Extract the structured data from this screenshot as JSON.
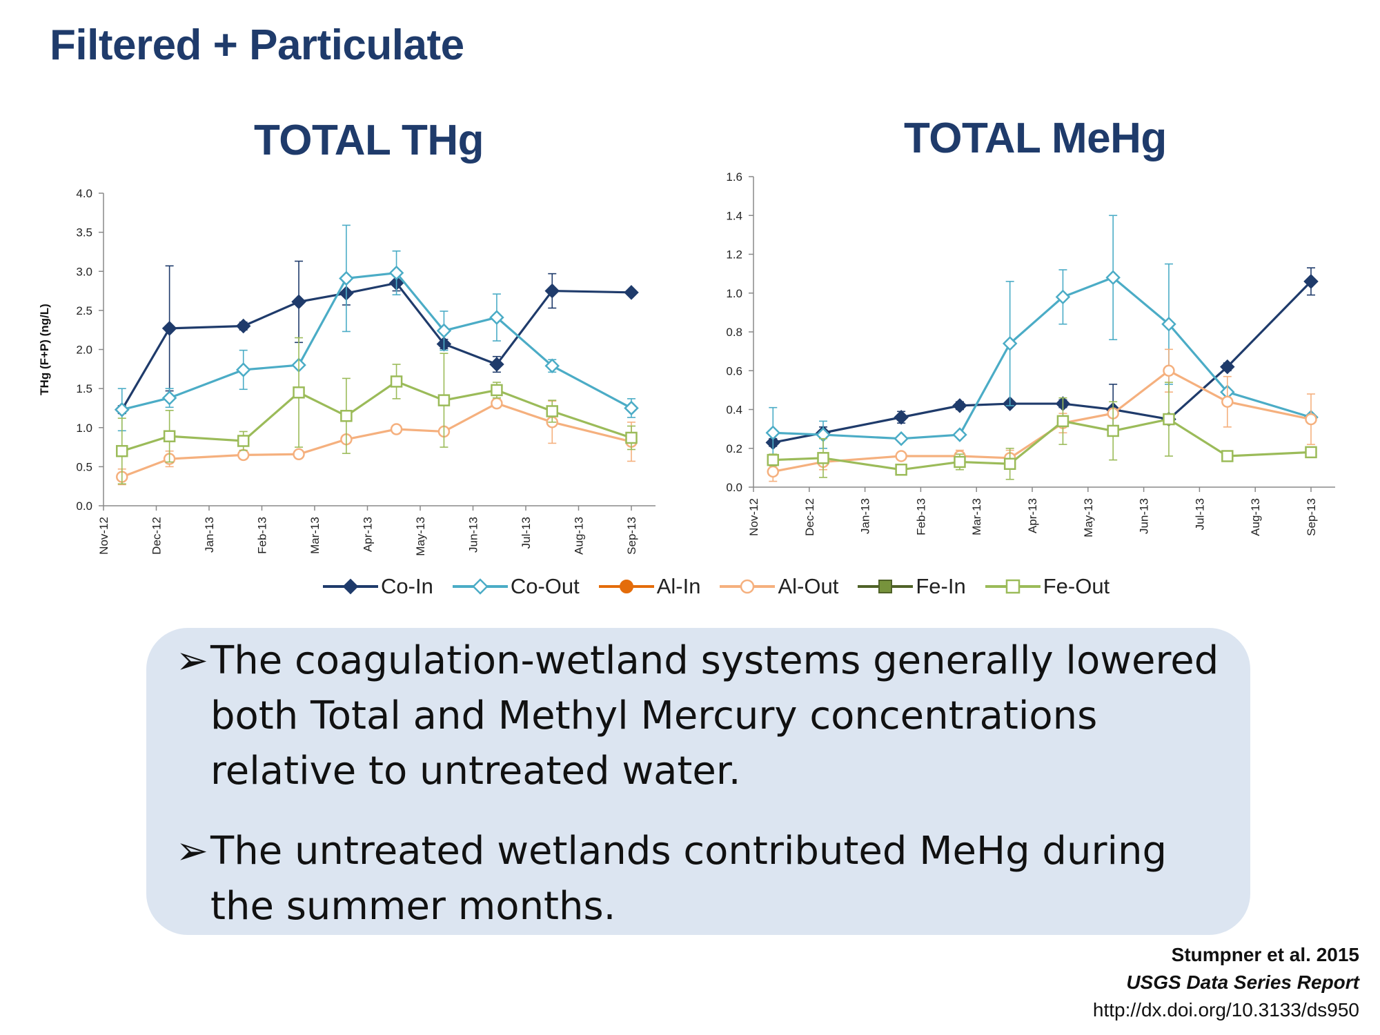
{
  "slide": {
    "title": "Filtered + Particulate",
    "bullets": [
      "The coagulation-wetland systems generally lowered both Total and Methyl Mercury concentrations relative to untreated water.",
      "The untreated wetlands contributed MeHg during the summer months."
    ],
    "bullet_symbol": "➢",
    "citation": {
      "authors": "Stumpner et al. 2015",
      "report": "USGS Data Series Report",
      "url": "http://dx.doi.org/10.3133/ds950"
    }
  },
  "legend": [
    {
      "name": "Co-In",
      "color": "#1F3B6B",
      "marker": "diamond",
      "filled": true
    },
    {
      "name": "Co-Out",
      "color": "#4BACC6",
      "marker": "diamond",
      "filled": false
    },
    {
      "name": "Al-In",
      "color": "#E46C0A",
      "marker": "circle",
      "filled": true
    },
    {
      "name": "Al-Out",
      "color": "#F5B07E",
      "marker": "circle",
      "filled": false
    },
    {
      "name": "Fe-In",
      "color": "#4F6228",
      "marker": "square",
      "filled": true
    },
    {
      "name": "Fe-Out",
      "color": "#9BBB59",
      "marker": "square",
      "filled": false
    }
  ],
  "chart_data": [
    {
      "type": "line",
      "id": "thg",
      "title": "TOTAL THg",
      "xlabel": "",
      "ylabel": "THg (F+P) (ng/L)",
      "ylim": [
        0,
        4.0
      ],
      "yticks": [
        "0.0",
        "0.5",
        "1.0",
        "1.5",
        "2.0",
        "2.5",
        "3.0",
        "3.5",
        "4.0"
      ],
      "xticks": [
        "Nov-12",
        "Dec-12",
        "Jan-13",
        "Feb-13",
        "Mar-13",
        "Apr-13",
        "May-13",
        "Jun-13",
        "Jul-13",
        "Aug-13",
        "Sep-13"
      ],
      "series": [
        {
          "name": "Co-In",
          "x": [
            0.35,
            1.25,
            2.65,
            3.7,
            4.6,
            5.55,
            6.45,
            7.45,
            8.5,
            10.0
          ],
          "y": [
            1.23,
            2.27,
            2.3,
            2.61,
            2.72,
            2.85,
            2.07,
            1.81,
            2.75,
            2.73
          ],
          "err": [
            0.05,
            0.8,
            0.05,
            0.52,
            0.15,
            0.1,
            0.06,
            0.1,
            0.22,
            0
          ]
        },
        {
          "name": "Co-Out",
          "x": [
            0.35,
            1.25,
            2.65,
            3.7,
            4.6,
            5.55,
            6.45,
            7.45,
            8.5,
            10.0
          ],
          "y": [
            1.23,
            1.38,
            1.74,
            1.8,
            2.91,
            2.98,
            2.24,
            2.41,
            1.79,
            1.25
          ],
          "err": [
            0.27,
            0.12,
            0.25,
            0,
            0.68,
            0.28,
            0.25,
            0.3,
            0.08,
            0.12
          ]
        },
        {
          "name": "Al-Out",
          "x": [
            0.35,
            1.25,
            2.65,
            3.7,
            4.6,
            5.55,
            6.45,
            7.45,
            8.5,
            10.0
          ],
          "y": [
            0.37,
            0.6,
            0.65,
            0.66,
            0.85,
            0.98,
            0.95,
            1.31,
            1.07,
            0.82
          ],
          "err": [
            0.1,
            0.1,
            0.05,
            0,
            0.05,
            0,
            0,
            0.05,
            0.27,
            0.25
          ]
        },
        {
          "name": "Fe-Out",
          "x": [
            0.35,
            1.25,
            2.65,
            3.7,
            4.6,
            5.55,
            6.45,
            7.45,
            8.5,
            10.0
          ],
          "y": [
            0.7,
            0.89,
            0.83,
            1.45,
            1.15,
            1.59,
            1.35,
            1.48,
            1.21,
            0.87
          ],
          "err": [
            0.42,
            0.33,
            0.12,
            0.7,
            0.48,
            0.22,
            0.6,
            0.1,
            0.14,
            0.15
          ]
        }
      ]
    },
    {
      "type": "line",
      "id": "mehg",
      "title": "TOTAL MeHg",
      "xlabel": "",
      "ylabel": "",
      "ylim": [
        0,
        1.6
      ],
      "yticks": [
        "0.0",
        "0.2",
        "0.4",
        "0.6",
        "0.8",
        "1.0",
        "1.2",
        "1.4",
        "1.6"
      ],
      "xticks": [
        "Nov-12",
        "Dec-12",
        "Jan-13",
        "Feb-13",
        "Mar-13",
        "Apr-13",
        "May-13",
        "Jun-13",
        "Jul-13",
        "Aug-13",
        "Sep-13"
      ],
      "series": [
        {
          "name": "Co-In",
          "x": [
            0.35,
            1.25,
            2.65,
            3.7,
            4.6,
            5.55,
            6.45,
            7.45,
            8.5,
            10.0
          ],
          "y": [
            0.23,
            0.28,
            0.36,
            0.42,
            0.43,
            0.43,
            0.4,
            0.35,
            0.62,
            1.06
          ],
          "err": [
            0.02,
            0.03,
            0.03,
            0.02,
            0,
            0.02,
            0.13,
            0,
            0.02,
            0.07
          ]
        },
        {
          "name": "Co-Out",
          "x": [
            0.35,
            1.25,
            2.65,
            3.7,
            4.6,
            5.55,
            6.45,
            7.45,
            8.5,
            10.0
          ],
          "y": [
            0.28,
            0.27,
            0.25,
            0.27,
            0.74,
            0.98,
            1.08,
            0.84,
            0.49,
            0.36
          ],
          "err": [
            0.13,
            0.07,
            0,
            0,
            0.32,
            0.14,
            0.32,
            0.31,
            0,
            0
          ]
        },
        {
          "name": "Al-Out",
          "x": [
            0.35,
            1.25,
            2.65,
            3.7,
            4.6,
            5.55,
            6.45,
            7.45,
            8.5,
            10.0
          ],
          "y": [
            0.08,
            0.13,
            0.16,
            0.16,
            0.15,
            0.33,
            0.38,
            0.6,
            0.44,
            0.35
          ],
          "err": [
            0.05,
            0.04,
            0,
            0.03,
            0.04,
            0.05,
            0,
            0.11,
            0.13,
            0.13
          ]
        },
        {
          "name": "Fe-Out",
          "x": [
            0.35,
            1.25,
            2.65,
            3.7,
            4.6,
            5.55,
            6.45,
            7.45,
            8.5,
            10.0
          ],
          "y": [
            0.14,
            0.15,
            0.09,
            0.13,
            0.12,
            0.34,
            0.29,
            0.35,
            0.16,
            0.18
          ],
          "err": [
            0.03,
            0.1,
            0,
            0.04,
            0.08,
            0.12,
            0.15,
            0.19,
            0,
            0
          ]
        }
      ]
    }
  ]
}
